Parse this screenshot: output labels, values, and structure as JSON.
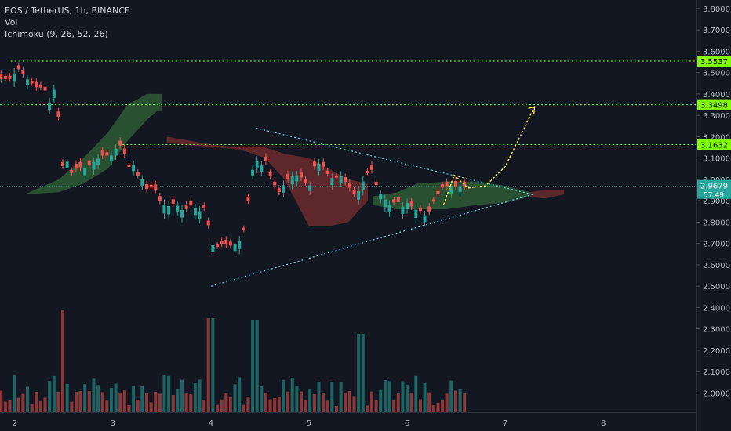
{
  "header": {
    "symbol_line": "EOS / TetherUS, 1h, BINANCE",
    "indicator_vol": "Vol",
    "indicator_ichimoku": "Ichimoku (9, 26, 52, 26)"
  },
  "colors": {
    "background": "#131722",
    "up": "#26a69a",
    "down": "#ef5350",
    "cloud_up": "#2f5a35",
    "cloud_down": "#6b2a2d",
    "level_line": "#7fff00",
    "triangle": "#4dd0e1",
    "arrow": "#ffeb3b",
    "axis_text": "#b2b5be",
    "last_price_bg": "#26a69a"
  },
  "chart_data": {
    "type": "candlestick",
    "x_axis": {
      "ticks": [
        {
          "label": "2",
          "x": 2
        },
        {
          "label": "3",
          "x": 3
        },
        {
          "label": "4",
          "x": 4
        },
        {
          "label": "5",
          "x": 5
        },
        {
          "label": "6",
          "x": 6
        },
        {
          "label": "7",
          "x": 7
        },
        {
          "label": "8",
          "x": 8
        }
      ],
      "xlim": [
        1.85,
        8.95
      ]
    },
    "y_axis": {
      "ticks": [
        "3.8000",
        "3.7000",
        "3.6000",
        "3.5000",
        "3.4000",
        "3.3000",
        "3.2000",
        "3.1000",
        "3.0000",
        "2.9000",
        "2.8000",
        "2.7000",
        "2.6000",
        "2.5000",
        "2.4000",
        "2.3000",
        "2.2000",
        "2.1000",
        "2.0000"
      ],
      "ylim": [
        1.91,
        3.84
      ]
    },
    "levels": [
      {
        "label": "3.5537",
        "value": 3.5537
      },
      {
        "label": "3.3498",
        "value": 3.3498
      },
      {
        "label": "3.1632",
        "value": 3.1632
      }
    ],
    "last_price": {
      "label": "2.9679",
      "value": 2.9679,
      "countdown": "57:49"
    },
    "close_path": [
      [
        1.96,
        3.47
      ],
      [
        2.0,
        3.5
      ],
      [
        2.05,
        3.52
      ],
      [
        2.1,
        3.48
      ],
      [
        2.15,
        3.46
      ],
      [
        2.2,
        3.44
      ],
      [
        2.25,
        3.42
      ],
      [
        2.28,
        3.44
      ],
      [
        2.33,
        3.4
      ],
      [
        2.38,
        3.32
      ],
      [
        2.4,
        3.42
      ],
      [
        2.45,
        3.28
      ],
      [
        2.48,
        3.05
      ],
      [
        2.52,
        3.1
      ],
      [
        2.58,
        3.03
      ],
      [
        2.65,
        3.06
      ],
      [
        2.72,
        3.05
      ],
      [
        2.8,
        3.08
      ],
      [
        2.86,
        3.1
      ],
      [
        2.92,
        3.12
      ],
      [
        2.97,
        3.1
      ],
      [
        3.02,
        3.14
      ],
      [
        3.08,
        3.16
      ],
      [
        3.12,
        3.12
      ],
      [
        3.15,
        3.05
      ],
      [
        3.2,
        3.08
      ],
      [
        3.25,
        3.02
      ],
      [
        3.3,
        3.0
      ],
      [
        3.35,
        2.95
      ],
      [
        3.42,
        2.97
      ],
      [
        3.48,
        2.9
      ],
      [
        3.55,
        2.87
      ],
      [
        3.63,
        2.89
      ],
      [
        3.72,
        2.85
      ],
      [
        3.8,
        2.88
      ],
      [
        3.88,
        2.85
      ],
      [
        3.95,
        2.87
      ],
      [
        4.0,
        2.7
      ],
      [
        4.05,
        2.68
      ],
      [
        4.12,
        2.7
      ],
      [
        4.2,
        2.69
      ],
      [
        4.28,
        2.7
      ],
      [
        4.35,
        2.78
      ],
      [
        4.4,
        2.98
      ],
      [
        4.45,
        3.11
      ],
      [
        4.5,
        3.05
      ],
      [
        4.55,
        3.1
      ],
      [
        4.6,
        3.02
      ],
      [
        4.63,
        3.0
      ],
      [
        4.68,
        2.93
      ],
      [
        4.75,
        2.98
      ],
      [
        4.8,
        3.01
      ],
      [
        4.88,
        3.02
      ],
      [
        4.95,
        3.0
      ],
      [
        5.0,
        2.95
      ],
      [
        5.05,
        3.06
      ],
      [
        5.12,
        3.08
      ],
      [
        5.18,
        3.03
      ],
      [
        5.25,
        3.0
      ],
      [
        5.32,
        3.02
      ],
      [
        5.4,
        2.97
      ],
      [
        5.48,
        2.92
      ],
      [
        5.55,
        2.99
      ],
      [
        5.63,
        3.06
      ],
      [
        5.7,
        2.95
      ],
      [
        5.75,
        2.92
      ],
      [
        5.82,
        2.88
      ],
      [
        5.9,
        2.9
      ],
      [
        5.95,
        2.87
      ],
      [
        6.0,
        2.89
      ],
      [
        6.08,
        2.86
      ],
      [
        6.15,
        2.85
      ],
      [
        6.2,
        2.82
      ],
      [
        6.25,
        2.88
      ],
      [
        6.3,
        2.92
      ],
      [
        6.35,
        2.96
      ],
      [
        6.42,
        2.97
      ],
      [
        6.48,
        2.9679
      ]
    ],
    "volume_range": [
      0,
      120
    ]
  },
  "annotations": {
    "triangle": {
      "top_left": [
        4.46,
        3.24
      ],
      "bottom_left": [
        4.0,
        2.5
      ],
      "apex": [
        7.28,
        2.93
      ]
    },
    "projection_arrow": {
      "points": [
        [
          6.37,
          2.88
        ],
        [
          6.48,
          3.02
        ],
        [
          6.62,
          2.96
        ],
        [
          6.8,
          2.97
        ],
        [
          7.0,
          3.06
        ],
        [
          7.15,
          3.2
        ],
        [
          7.3,
          3.34
        ]
      ]
    },
    "kumo_up_early": {
      "x": [
        1.85,
        2.1,
        2.45,
        2.7,
        2.95,
        3.15,
        3.35,
        3.45,
        3.5
      ],
      "top": [
        2.93,
        2.93,
        3.0,
        3.1,
        3.22,
        3.35,
        3.4,
        3.4,
        3.4
      ],
      "bottom": [
        2.93,
        2.93,
        2.94,
        2.98,
        3.05,
        3.18,
        3.28,
        3.32,
        3.32
      ]
    },
    "kumo_down_mid": {
      "x": [
        3.55,
        3.8,
        4.05,
        4.3,
        4.55,
        4.75,
        5.0,
        5.2,
        5.4,
        5.6
      ],
      "top": [
        3.2,
        3.18,
        3.16,
        3.15,
        3.15,
        3.12,
        3.1,
        3.05,
        3.0,
        2.98
      ],
      "bottom": [
        3.17,
        3.16,
        3.15,
        3.14,
        3.1,
        3.0,
        2.78,
        2.78,
        2.8,
        2.9
      ]
    },
    "kumo_up_late": {
      "x": [
        5.65,
        5.9,
        6.1,
        6.4,
        6.7,
        7.0,
        7.25
      ],
      "top": [
        2.92,
        2.94,
        2.98,
        2.99,
        2.99,
        2.97,
        2.94
      ],
      "bottom": [
        2.88,
        2.86,
        2.86,
        2.86,
        2.88,
        2.89,
        2.92
      ]
    },
    "kumo_down_end": {
      "x": [
        7.25,
        7.4,
        7.6
      ],
      "top": [
        2.94,
        2.95,
        2.95
      ],
      "bottom": [
        2.92,
        2.91,
        2.93
      ]
    }
  }
}
